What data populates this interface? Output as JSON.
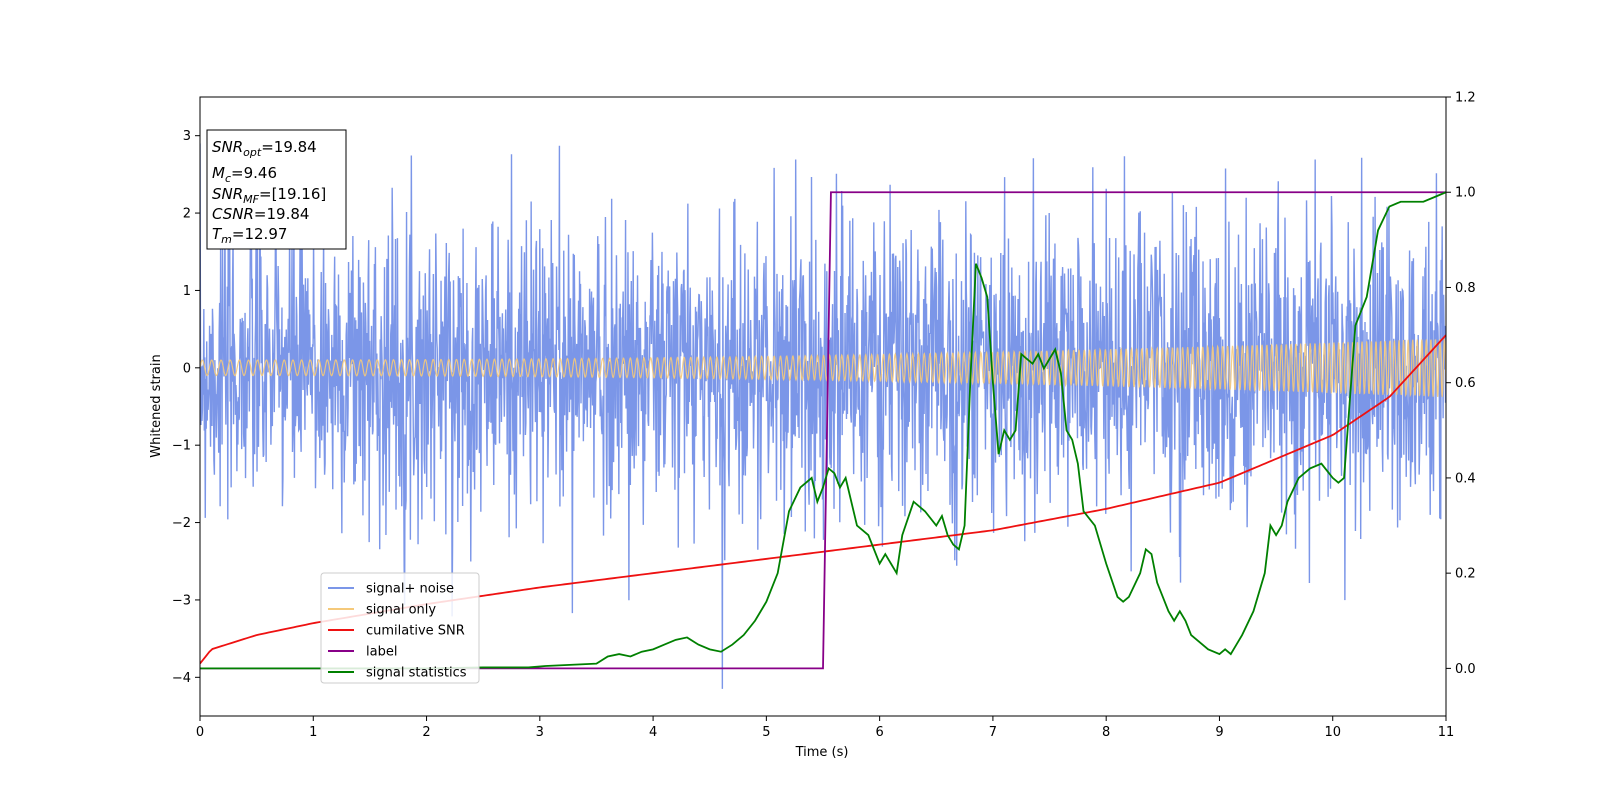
{
  "chart_data": {
    "type": "line",
    "xlabel": "Time (s)",
    "ylabel": "Whitened strain",
    "xlim": [
      0,
      11
    ],
    "ylim_left": [
      -4.5,
      3.5
    ],
    "ylim_right": [
      -0.1,
      1.2
    ],
    "x_ticks": [
      0,
      1,
      2,
      3,
      4,
      5,
      6,
      7,
      8,
      9,
      10,
      11
    ],
    "y_ticks_left": [
      -4,
      -3,
      -2,
      -1,
      0,
      1,
      2,
      3
    ],
    "y_ticks_right": [
      0.0,
      0.2,
      0.4,
      0.6,
      0.8,
      1.0,
      1.2
    ],
    "grid": false,
    "legend_position": "lower-left",
    "info_box": {
      "snr_opt": {
        "base": "SNR",
        "sub": "opt",
        "value": "=19.84"
      },
      "mc": {
        "base": "M",
        "sub": "c",
        "value": "=9.46"
      },
      "snr_mf": {
        "base": "SNR",
        "sub": "MF",
        "value": "=[19.16]"
      },
      "csnr": {
        "base": "CSNR",
        "sub": "",
        "value": "=19.84"
      },
      "tm": {
        "base": "T",
        "sub": "m",
        "value": "=12.97"
      }
    },
    "series": [
      {
        "name": "signal+ noise",
        "axis": "left",
        "color": "#7b96e8",
        "kind": "noise_band",
        "envelope": {
          "typical_low": -1.5,
          "typical_high": 1.5,
          "peak_low": -4.15,
          "peak_high": 2.87
        }
      },
      {
        "name": "signal only",
        "axis": "left",
        "color": "#f5c97a",
        "kind": "chirp",
        "amplitude_start": 0.1,
        "amplitude_end": 0.38
      },
      {
        "name": "cumilative SNR",
        "axis": "right",
        "color": "#ee1111",
        "x": [
          0,
          0.1,
          0.5,
          1,
          2,
          3,
          4,
          5,
          6,
          7,
          8,
          9,
          10,
          10.5,
          11
        ],
        "y": [
          0.01,
          0.04,
          0.07,
          0.095,
          0.135,
          0.17,
          0.2,
          0.23,
          0.26,
          0.29,
          0.335,
          0.39,
          0.49,
          0.57,
          0.7
        ]
      },
      {
        "name": "label",
        "axis": "right",
        "color": "#880088",
        "x": [
          0,
          5.5,
          5.57,
          11
        ],
        "y": [
          0,
          0,
          1,
          1
        ]
      },
      {
        "name": "signal statistics",
        "axis": "right",
        "color": "#008000",
        "x": [
          0,
          1,
          2,
          2.5,
          2.9,
          3.05,
          3.5,
          3.6,
          3.7,
          3.8,
          3.9,
          4.0,
          4.1,
          4.2,
          4.3,
          4.4,
          4.5,
          4.6,
          4.7,
          4.8,
          4.9,
          4.95,
          5.0,
          5.1,
          5.2,
          5.3,
          5.4,
          5.45,
          5.5,
          5.55,
          5.6,
          5.65,
          5.7,
          5.8,
          5.9,
          6.0,
          6.05,
          6.1,
          6.15,
          6.2,
          6.3,
          6.4,
          6.5,
          6.55,
          6.6,
          6.65,
          6.7,
          6.75,
          6.8,
          6.85,
          6.9,
          6.95,
          7.0,
          7.05,
          7.1,
          7.15,
          7.2,
          7.25,
          7.3,
          7.35,
          7.4,
          7.45,
          7.5,
          7.55,
          7.6,
          7.65,
          7.7,
          7.75,
          7.8,
          7.9,
          8.0,
          8.1,
          8.15,
          8.2,
          8.3,
          8.35,
          8.4,
          8.45,
          8.5,
          8.55,
          8.6,
          8.65,
          8.7,
          8.75,
          8.8,
          8.9,
          9.0,
          9.05,
          9.1,
          9.15,
          9.2,
          9.3,
          9.4,
          9.45,
          9.5,
          9.55,
          9.6,
          9.7,
          9.8,
          9.9,
          10.0,
          10.05,
          10.1,
          10.2,
          10.3,
          10.4,
          10.5,
          10.6,
          10.7,
          10.8,
          10.9,
          11.0
        ],
        "y": [
          0.0,
          0.0,
          0.0,
          0.002,
          0.002,
          0.005,
          0.01,
          0.025,
          0.03,
          0.025,
          0.035,
          0.04,
          0.05,
          0.06,
          0.065,
          0.05,
          0.04,
          0.035,
          0.05,
          0.07,
          0.1,
          0.12,
          0.14,
          0.2,
          0.33,
          0.38,
          0.4,
          0.35,
          0.38,
          0.42,
          0.41,
          0.38,
          0.4,
          0.3,
          0.28,
          0.22,
          0.24,
          0.22,
          0.2,
          0.28,
          0.35,
          0.33,
          0.3,
          0.32,
          0.28,
          0.26,
          0.25,
          0.3,
          0.6,
          0.85,
          0.82,
          0.78,
          0.6,
          0.45,
          0.5,
          0.48,
          0.5,
          0.66,
          0.65,
          0.64,
          0.66,
          0.63,
          0.65,
          0.67,
          0.62,
          0.5,
          0.48,
          0.43,
          0.33,
          0.3,
          0.22,
          0.15,
          0.14,
          0.15,
          0.2,
          0.25,
          0.24,
          0.18,
          0.15,
          0.12,
          0.1,
          0.12,
          0.1,
          0.07,
          0.06,
          0.04,
          0.03,
          0.04,
          0.03,
          0.05,
          0.07,
          0.12,
          0.2,
          0.3,
          0.28,
          0.3,
          0.35,
          0.4,
          0.42,
          0.43,
          0.4,
          0.39,
          0.4,
          0.72,
          0.78,
          0.92,
          0.97,
          0.98,
          0.98,
          0.98,
          0.99,
          1.0
        ]
      }
    ]
  }
}
